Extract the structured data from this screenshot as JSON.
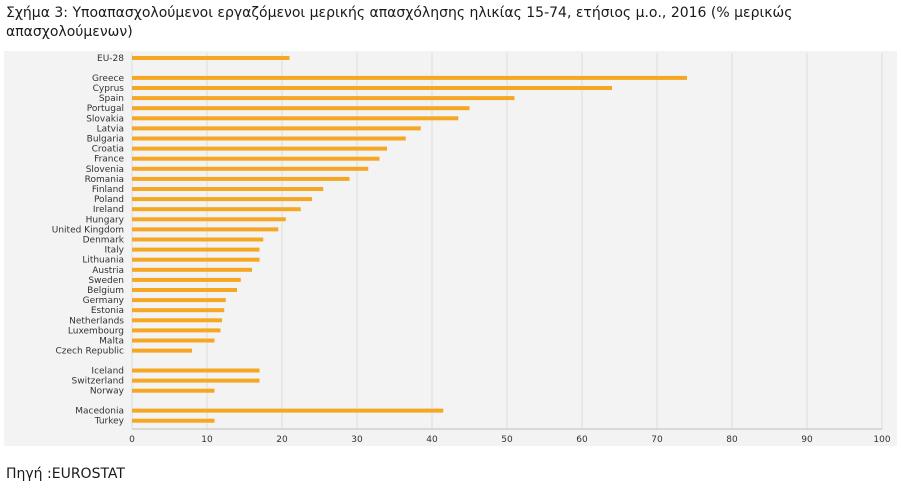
{
  "caption": "Σχήμα 3: Υποαπασχολούμενοι εργαζόμενοι μερικής απασχόλησης ηλικίας 15-74, ετήσιος μ.ο., 2016 (% μερικώς απασχολούμενων)",
  "source": "Πηγή :EUROSTAT",
  "chart_data": {
    "type": "bar",
    "orientation": "horizontal",
    "title": "",
    "xlabel": "",
    "ylabel": "",
    "xlim": [
      0,
      100
    ],
    "xticks": [
      0,
      10,
      20,
      30,
      40,
      50,
      60,
      70,
      80,
      90,
      100
    ],
    "grid": true,
    "bar_color": "#f5a623",
    "categories": [
      "EU-28",
      "Greece",
      "Cyprus",
      "Spain",
      "Portugal",
      "Slovakia",
      "Latvia",
      "Bulgaria",
      "Croatia",
      "France",
      "Slovenia",
      "Romania",
      "Finland",
      "Poland",
      "Ireland",
      "Hungary",
      "United Kingdom",
      "Denmark",
      "Italy",
      "Lithuania",
      "Austria",
      "Sweden",
      "Belgium",
      "Germany",
      "Estonia",
      "Netherlands",
      "Luxembourg",
      "Malta",
      "Czech Republic",
      "Iceland",
      "Switzerland",
      "Norway",
      "Macedonia",
      "Turkey"
    ],
    "values": [
      21,
      74,
      64,
      51,
      45,
      43.5,
      38.5,
      36.5,
      34,
      33,
      31.5,
      29,
      25.5,
      24,
      22.5,
      20.5,
      19.5,
      17.5,
      17,
      17,
      16,
      14.5,
      14,
      12.5,
      12.3,
      12,
      11.8,
      11,
      8,
      17,
      17,
      11,
      41.5,
      11
    ],
    "groups": [
      0,
      1,
      1,
      1,
      1,
      1,
      1,
      1,
      1,
      1,
      1,
      1,
      1,
      1,
      1,
      1,
      1,
      1,
      1,
      1,
      1,
      1,
      1,
      1,
      1,
      1,
      1,
      1,
      1,
      2,
      2,
      2,
      3,
      3
    ]
  }
}
